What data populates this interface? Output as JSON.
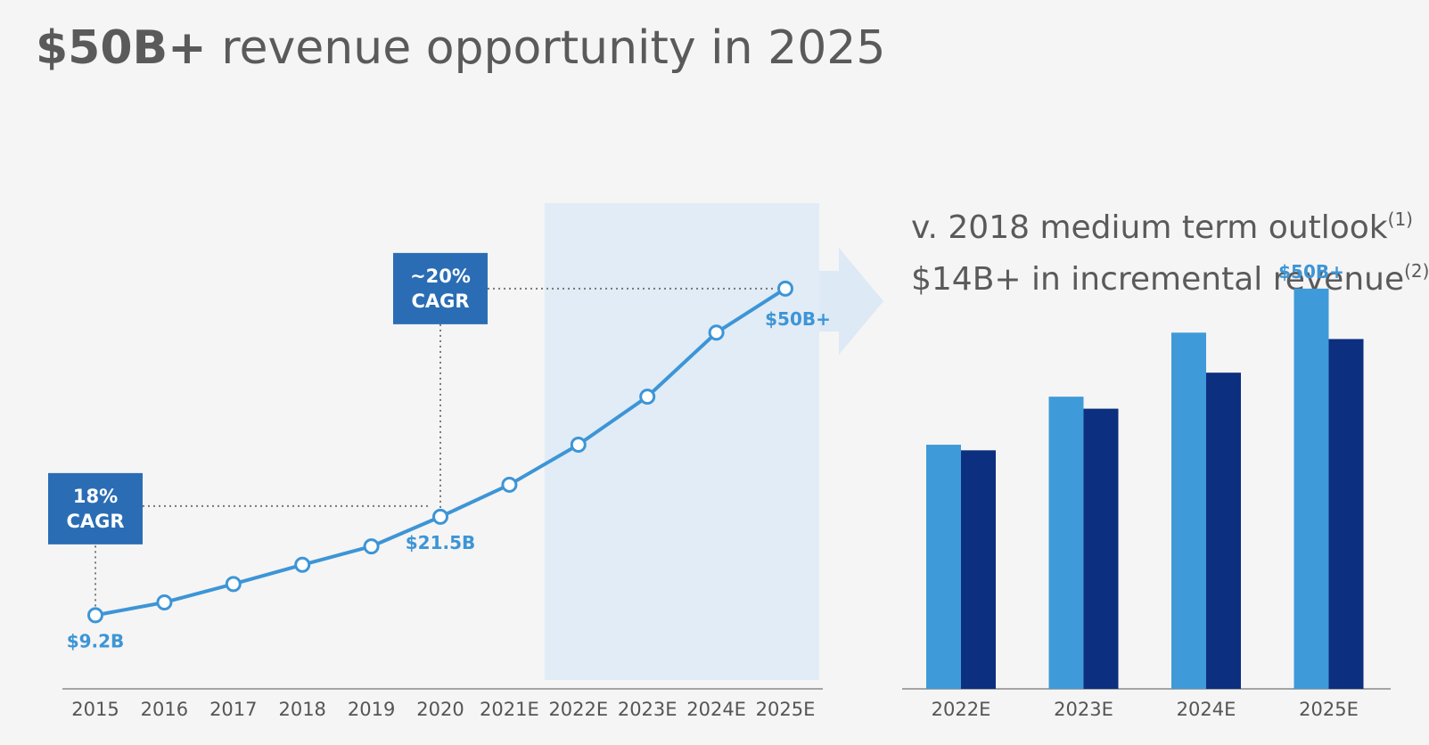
{
  "title": {
    "bold": "$50B+",
    "rest": " revenue opportunity in 2025"
  },
  "right_heading": {
    "line1": "v. 2018 medium term outlook",
    "line1_sup": "(1)",
    "line2": "$14B+ in incremental revenue",
    "line2_sup": "(2)"
  },
  "colors": {
    "line": "#3d95d6",
    "callout_box": "#2a6db5",
    "forecast_band": "#e1ecf6",
    "arrow": "#dde9f5",
    "bar_light": "#3f9ad9",
    "bar_dark": "#0d2f80",
    "axis": "#8a8a8a"
  },
  "chart_data": [
    {
      "type": "line",
      "categories": [
        "2015",
        "2016",
        "2017",
        "2018",
        "2019",
        "2020",
        "2021E",
        "2022E",
        "2023E",
        "2024E",
        "2025E"
      ],
      "values": [
        9.2,
        10.8,
        13.1,
        15.5,
        17.8,
        21.5,
        25.5,
        30.5,
        36.5,
        44.5,
        50
      ],
      "ylim": [
        0,
        58
      ],
      "forecast_start": "2022E",
      "data_labels": [
        {
          "category": "2015",
          "text": "$9.2B"
        },
        {
          "category": "2020",
          "text": "$21.5B"
        },
        {
          "category": "2025E",
          "text": "$50B+"
        }
      ],
      "callouts": [
        {
          "line1": "18%",
          "line2": "CAGR",
          "from": "2015",
          "to": "2020"
        },
        {
          "line1": "~20%",
          "line2": "CAGR",
          "from": "2020",
          "to": "2025E"
        }
      ]
    },
    {
      "type": "bar",
      "categories": [
        "2022E",
        "2023E",
        "2024E",
        "2025E"
      ],
      "series": [
        {
          "values": [
            30.5,
            36.5,
            44.5,
            50
          ]
        },
        {
          "values": [
            29.8,
            35,
            39.5,
            43.7
          ]
        }
      ],
      "ylim": [
        0,
        58
      ],
      "data_labels": [
        {
          "category": "2025E",
          "series": 0,
          "text": "$50B+"
        }
      ]
    }
  ]
}
